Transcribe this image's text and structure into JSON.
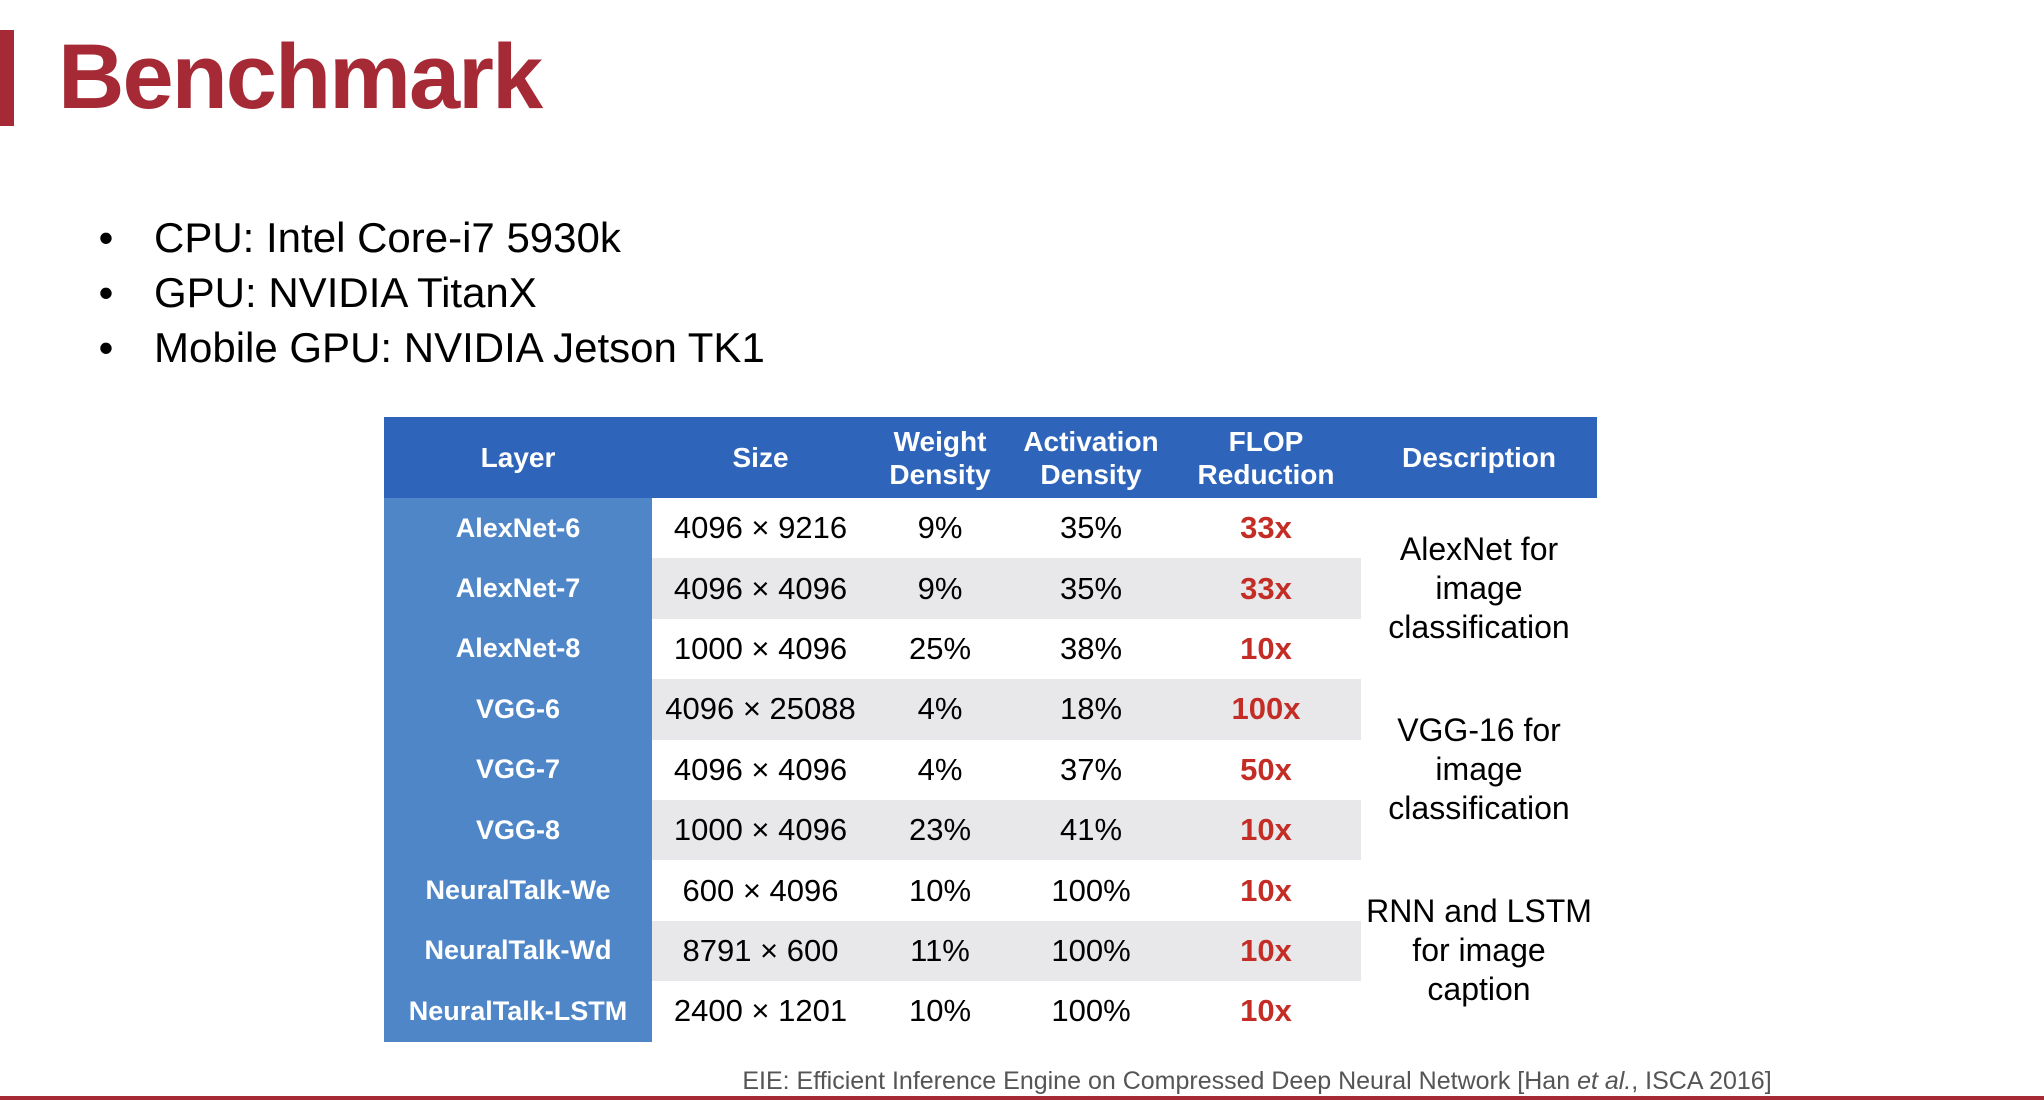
{
  "slide": {
    "title": "Benchmark",
    "accent_color": "#a52a35",
    "bullets": [
      "CPU: Intel Core-i7 5930k",
      "GPU: NVIDIA TitanX",
      "Mobile GPU: NVIDIA Jetson TK1"
    ],
    "bullet_marker": "•"
  },
  "table": {
    "header_color": "#2e64b9",
    "layer_col_color": "#4f86c8",
    "flop_color": "#c42d25",
    "headers": {
      "layer": "Layer",
      "size": "Size",
      "weight_density_1": "Weight",
      "weight_density_2": "Density",
      "activation_density_1": "Activation",
      "activation_density_2": "Density",
      "flop_reduction_1": "FLOP",
      "flop_reduction_2": "Reduction",
      "description": "Description"
    },
    "rows": [
      {
        "layer": "AlexNet-6",
        "size": "4096 × 9216",
        "weight_density": "9%",
        "activation_density": "35%",
        "flop_reduction": "33x"
      },
      {
        "layer": "AlexNet-7",
        "size": "4096 × 4096",
        "weight_density": "9%",
        "activation_density": "35%",
        "flop_reduction": "33x"
      },
      {
        "layer": "AlexNet-8",
        "size": "1000 × 4096",
        "weight_density": "25%",
        "activation_density": "38%",
        "flop_reduction": "10x"
      },
      {
        "layer": "VGG-6",
        "size": "4096 × 25088",
        "weight_density": "4%",
        "activation_density": "18%",
        "flop_reduction": "100x"
      },
      {
        "layer": "VGG-7",
        "size": "4096 × 4096",
        "weight_density": "4%",
        "activation_density": "37%",
        "flop_reduction": "50x"
      },
      {
        "layer": "VGG-8",
        "size": "1000 × 4096",
        "weight_density": "23%",
        "activation_density": "41%",
        "flop_reduction": "10x"
      },
      {
        "layer": "NeuralTalk-We",
        "size": "600 × 4096",
        "weight_density": "10%",
        "activation_density": "100%",
        "flop_reduction": "10x"
      },
      {
        "layer": "NeuralTalk-Wd",
        "size": "8791 × 600",
        "weight_density": "11%",
        "activation_density": "100%",
        "flop_reduction": "10x"
      },
      {
        "layer": "NeuralTalk-LSTM",
        "size": "2400 × 1201",
        "weight_density": "10%",
        "activation_density": "100%",
        "flop_reduction": "10x"
      }
    ],
    "descriptions": [
      {
        "line1": "AlexNet for",
        "line2": "image",
        "line3": "classification"
      },
      {
        "line1": "VGG-16 for",
        "line2": "image",
        "line3": "classification"
      },
      {
        "line1": "RNN and LSTM",
        "line2": "for image",
        "line3": "caption"
      }
    ]
  },
  "citation": {
    "prefix": "EIE: Efficient Inference Engine on Compressed Deep Neural Network [Han ",
    "et_al": "et al.",
    "suffix": ", ISCA 2016]"
  }
}
